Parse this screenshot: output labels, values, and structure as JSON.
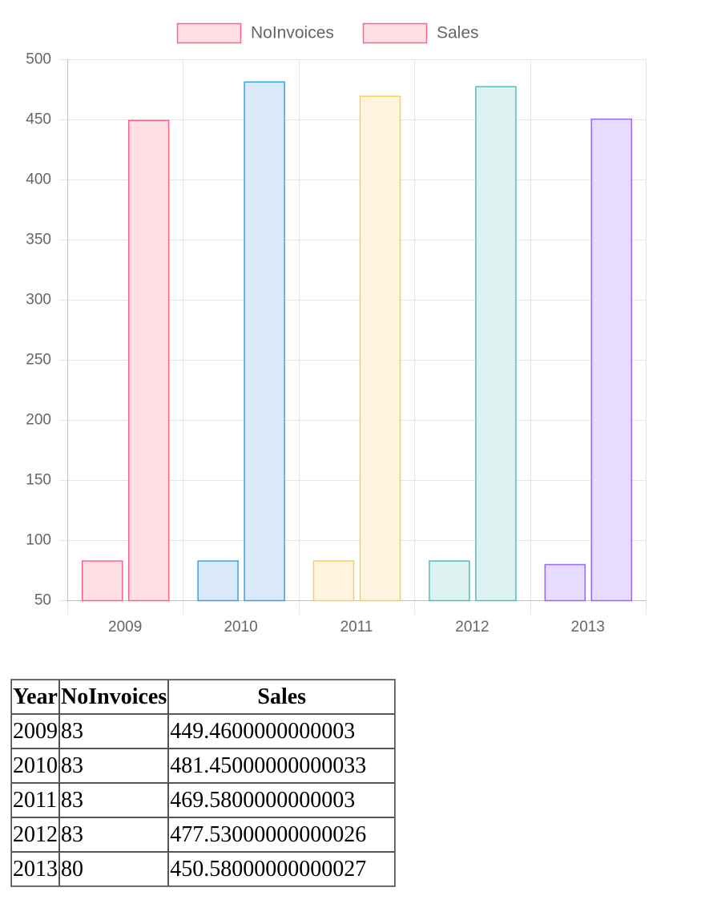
{
  "chart_data": {
    "type": "bar",
    "categories": [
      "2009",
      "2010",
      "2011",
      "2012",
      "2013"
    ],
    "series": [
      {
        "name": "NoInvoices",
        "values": [
          83,
          83,
          83,
          83,
          80
        ]
      },
      {
        "name": "Sales",
        "values": [
          449.46,
          481.45,
          469.58,
          477.53,
          450.58
        ]
      }
    ],
    "ylim": [
      50,
      500
    ],
    "yticks": [
      50,
      100,
      150,
      200,
      250,
      300,
      350,
      400,
      450,
      500
    ],
    "grid": true,
    "legend_position": "top-center",
    "category_colors": [
      {
        "border": "#ff6384",
        "fill": "#ffe0e6"
      },
      {
        "border": "#36a2eb",
        "fill": "#dbeafb"
      },
      {
        "border": "#ffcd56",
        "fill": "#fff5e0"
      },
      {
        "border": "#4bc0c0",
        "fill": "#dff2f2"
      },
      {
        "border": "#9966ff",
        "fill": "#e6dcff"
      }
    ],
    "legend_swatch_color": {
      "border": "#ff6384",
      "fill": "#ffe0e6"
    },
    "text_color": "#666666",
    "grid_color": "#e5e5e5"
  },
  "table": {
    "headers": [
      "Year",
      "NoInvoices",
      "Sales"
    ],
    "rows": [
      [
        "2009",
        "83",
        "449.4600000000003"
      ],
      [
        "2010",
        "83",
        "481.45000000000033"
      ],
      [
        "2011",
        "83",
        "469.5800000000003"
      ],
      [
        "2012",
        "83",
        "477.53000000000026"
      ],
      [
        "2013",
        "80",
        "450.58000000000027"
      ]
    ]
  }
}
